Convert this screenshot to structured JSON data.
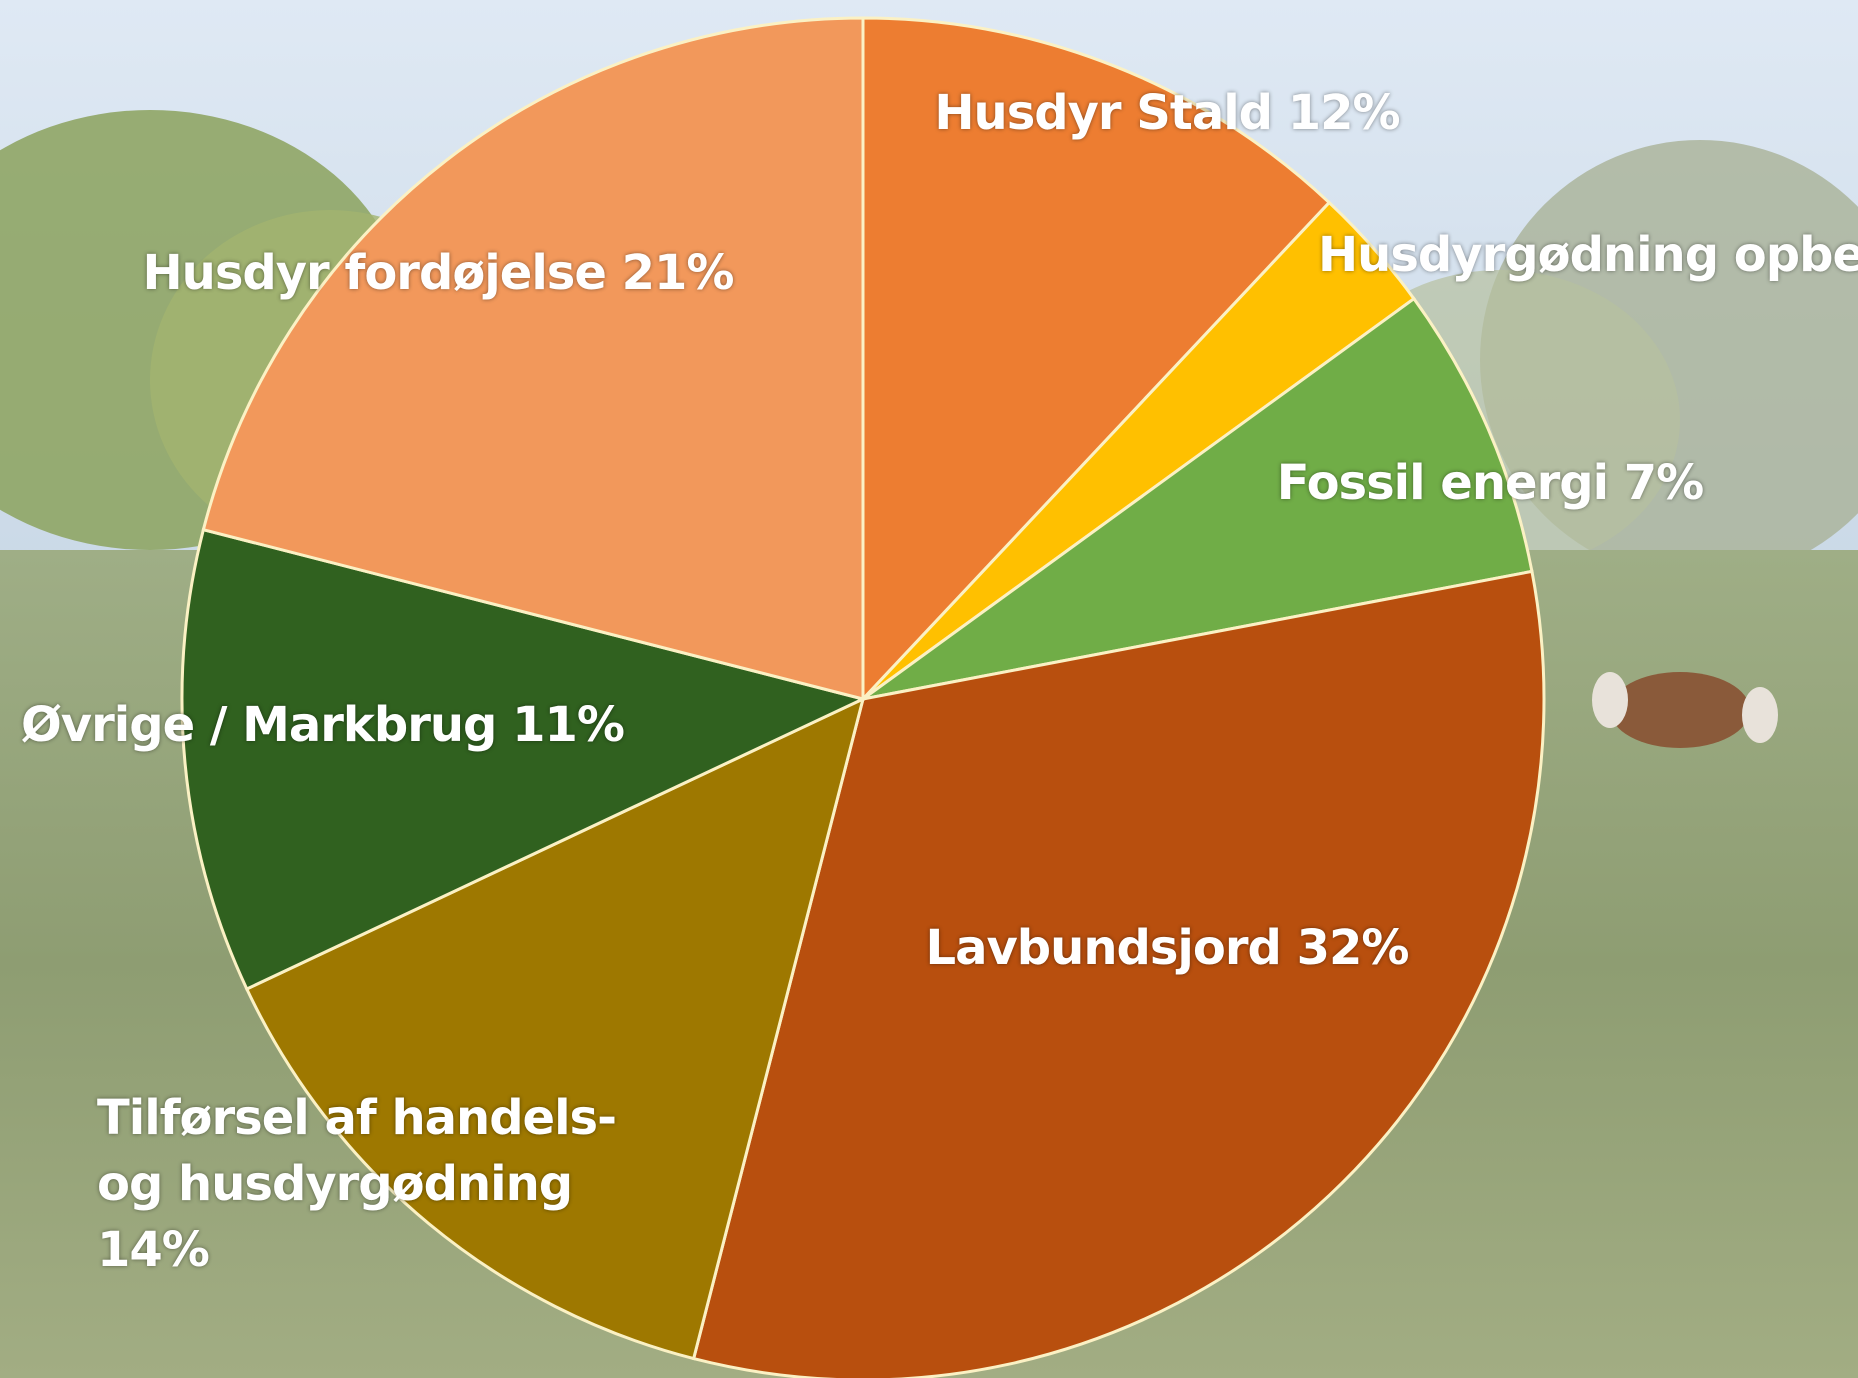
{
  "chart_data": {
    "type": "pie",
    "categories": [
      "Husdyr Stald",
      "Husdyrgødning opbev",
      "Fossil energi",
      "Lavbundsjord",
      "Tilførsel af handels- og husdyrgødning",
      "Øvrige / Markbrug",
      "Husdyr fordøjelse"
    ],
    "values": [
      12,
      3,
      7,
      32,
      14,
      11,
      21
    ],
    "value_labels": [
      "12%",
      null,
      "7%",
      "32%",
      "14%",
      "11%",
      "21%"
    ],
    "colors": [
      "#ED7D31",
      "#FFC000",
      "#70AD47",
      "#B84F0E",
      "#9E7800",
      "#30611F",
      "#F2985B"
    ]
  }
}
